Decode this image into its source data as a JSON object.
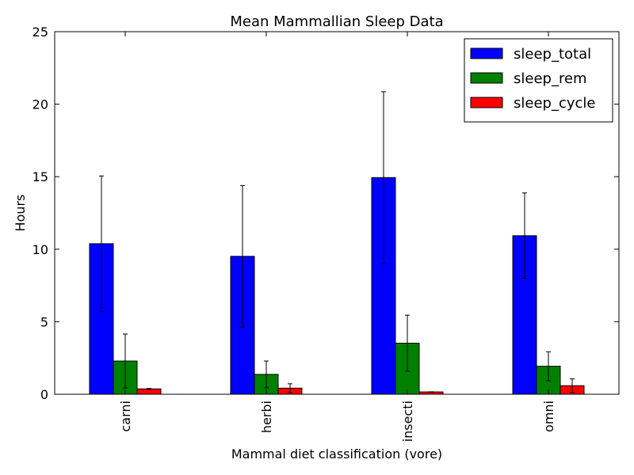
{
  "chart_data": {
    "type": "bar",
    "title": "Mean Mammallian Sleep Data",
    "xlabel": "Mammal diet classification (vore)",
    "ylabel": "Hours",
    "categories": [
      "carni",
      "herbi",
      "insecti",
      "omni"
    ],
    "ylim": [
      0,
      25
    ],
    "yticks": [
      "0",
      "5",
      "10",
      "15",
      "20",
      "25"
    ],
    "grid": false,
    "legend_position": "top-right",
    "series": [
      {
        "name": "sleep_total",
        "color": "#0000ff",
        "values": [
          10.38,
          9.51,
          14.94,
          10.93
        ],
        "errors": [
          4.67,
          4.88,
          5.92,
          2.95
        ]
      },
      {
        "name": "sleep_rem",
        "color": "#008000",
        "values": [
          2.29,
          1.37,
          3.52,
          1.93
        ],
        "errors": [
          1.86,
          0.92,
          1.93,
          1.0
        ]
      },
      {
        "name": "sleep_cycle",
        "color": "#ff0000",
        "values": [
          0.37,
          0.42,
          0.16,
          0.59
        ],
        "errors": [
          0.03,
          0.3,
          0.01,
          0.47
        ]
      }
    ]
  }
}
